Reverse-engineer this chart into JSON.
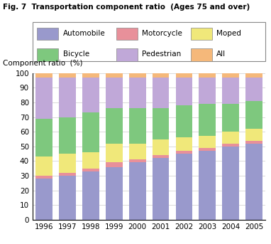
{
  "title": "Fig. 7  Transportation component ratio  (Ages 75 and over)",
  "ylabel": "Component ratio  (%)",
  "years": [
    1996,
    1997,
    1998,
    1999,
    2000,
    2001,
    2002,
    2003,
    2004,
    2005
  ],
  "categories": [
    "Automobile",
    "Motorcycle",
    "Moped",
    "Bicycle",
    "Pedestrian",
    "All"
  ],
  "colors": [
    "#9999cc",
    "#e8909a",
    "#f0e87a",
    "#7ec87e",
    "#c0a8d8",
    "#f5b87a"
  ],
  "data": {
    "Automobile": [
      28,
      30,
      33,
      36,
      39,
      42,
      45,
      47,
      50,
      52
    ],
    "Motorcycle": [
      2,
      2,
      2,
      3,
      2,
      2,
      2,
      2,
      2,
      2
    ],
    "Moped": [
      13,
      13,
      11,
      13,
      11,
      11,
      9,
      8,
      8,
      8
    ],
    "Bicycle": [
      26,
      25,
      27,
      24,
      24,
      21,
      22,
      22,
      19,
      19
    ],
    "Pedestrian": [
      28,
      27,
      24,
      21,
      21,
      21,
      19,
      18,
      18,
      16
    ],
    "All": [
      3,
      3,
      3,
      3,
      3,
      3,
      3,
      3,
      3,
      3
    ]
  },
  "ylim": [
    0,
    100
  ],
  "yticks": [
    0,
    10,
    20,
    30,
    40,
    50,
    60,
    70,
    80,
    90,
    100
  ],
  "legend_row1": [
    "Automobile",
    "Motorcycle",
    "Moped"
  ],
  "legend_row2": [
    "Bicycle",
    "Pedestrian",
    "All"
  ]
}
